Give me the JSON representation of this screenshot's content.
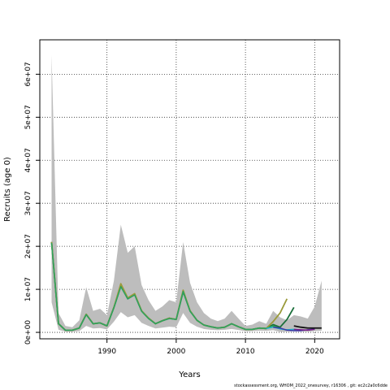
{
  "chart_data": {
    "type": "line",
    "xlabel": "Years",
    "ylabel": "Recruits (age 0)",
    "xlim": [
      1980.3,
      2023.6
    ],
    "ylim": [
      -1500000,
      68000000
    ],
    "x_ticks": [
      1990,
      2000,
      2010,
      2020
    ],
    "x_tick_labels": [
      "1990",
      "2000",
      "2010",
      "2020"
    ],
    "y_ticks": [
      0,
      10000000,
      20000000,
      30000000,
      40000000,
      50000000,
      60000000
    ],
    "y_tick_labels": [
      "0e+00",
      "1e+07",
      "2e+07",
      "3e+07",
      "4e+07",
      "5e+07",
      "6e+07"
    ],
    "grid": true,
    "years": [
      1982,
      1983,
      1984,
      1985,
      1986,
      1987,
      1988,
      1989,
      1990,
      1991,
      1992,
      1993,
      1994,
      1995,
      1996,
      1997,
      1998,
      1999,
      2000,
      2001,
      2002,
      2003,
      2004,
      2005,
      2006,
      2007,
      2008,
      2009,
      2010,
      2011,
      2012,
      2013,
      2014,
      2015,
      2016,
      2017,
      2018,
      2019,
      2020,
      2021
    ],
    "band_upper": [
      64500000,
      4500000,
      1500000,
      1200000,
      2800000,
      10500000,
      5000000,
      5500000,
      4000000,
      12000000,
      25000000,
      18500000,
      20000000,
      11000000,
      7500000,
      5000000,
      6000000,
      7500000,
      7000000,
      21000000,
      11500000,
      7000000,
      4500000,
      3200000,
      2600000,
      3200000,
      5000000,
      3200000,
      1500000,
      1800000,
      2600000,
      2000000,
      5000000,
      3500000,
      2800000,
      4000000,
      3700000,
      3200000,
      6000000,
      12000000
    ],
    "band_lower": [
      7000000,
      600000,
      150000,
      120000,
      300000,
      1500000,
      900000,
      1000000,
      700000,
      2500000,
      4700000,
      3500000,
      4000000,
      2200000,
      1500000,
      900000,
      1100000,
      1300000,
      1200000,
      4500000,
      2200000,
      1300000,
      800000,
      600000,
      500000,
      600000,
      800000,
      550000,
      250000,
      300000,
      400000,
      350000,
      500000,
      100000,
      150000,
      250000,
      200000,
      150000,
      300000,
      400000
    ],
    "estimate": [
      21000000,
      2000000,
      500000,
      500000,
      1000000,
      4200000,
      2000000,
      2200000,
      1500000,
      5800000,
      11000000,
      8000000,
      9000000,
      5000000,
      3300000,
      2000000,
      2700000,
      3300000,
      3000000,
      9800000,
      5000000,
      2800000,
      1700000,
      1300000,
      1000000,
      1200000,
      2000000,
      1300000,
      700000,
      700000,
      1000000,
      900000,
      1500000,
      1100000,
      700000,
      900000,
      850000,
      800000,
      1000000,
      1000000
    ],
    "series": [
      {
        "color": "#1a6e3a",
        "width": 1.8,
        "points": [
          [
            1982,
            21000000
          ],
          [
            1983,
            2000000
          ],
          [
            1984,
            500000
          ],
          [
            1985,
            500000
          ],
          [
            1986,
            1000000
          ],
          [
            1987,
            4200000
          ],
          [
            1988,
            2000000
          ],
          [
            1989,
            2200000
          ],
          [
            1990,
            1500000
          ],
          [
            1991,
            5800000
          ],
          [
            1992,
            10800000
          ],
          [
            1993,
            7800000
          ],
          [
            1994,
            8800000
          ],
          [
            1995,
            5000000
          ],
          [
            1996,
            3300000
          ],
          [
            1997,
            2000000
          ],
          [
            1998,
            2700000
          ],
          [
            1999,
            3300000
          ],
          [
            2000,
            3000000
          ],
          [
            2001,
            9500000
          ],
          [
            2002,
            5000000
          ],
          [
            2003,
            2800000
          ],
          [
            2004,
            1700000
          ],
          [
            2005,
            1300000
          ],
          [
            2006,
            1000000
          ],
          [
            2007,
            1200000
          ],
          [
            2008,
            2000000
          ],
          [
            2009,
            1300000
          ],
          [
            2010,
            700000
          ],
          [
            2011,
            700000
          ],
          [
            2012,
            1000000
          ],
          [
            2013,
            900000
          ],
          [
            2014,
            1800000
          ],
          [
            2015,
            1200000
          ],
          [
            2016,
            3000000
          ],
          [
            2017,
            5800000
          ]
        ]
      },
      {
        "color": "#9a9a3a",
        "width": 1.8,
        "points": [
          [
            1982,
            21000000
          ],
          [
            1983,
            2000000
          ],
          [
            1984,
            500000
          ],
          [
            1985,
            500000
          ],
          [
            1986,
            1000000
          ],
          [
            1987,
            4200000
          ],
          [
            1988,
            2000000
          ],
          [
            1989,
            2200000
          ],
          [
            1990,
            1500000
          ],
          [
            1991,
            5800000
          ],
          [
            1992,
            11300000
          ],
          [
            1993,
            8000000
          ],
          [
            1994,
            9000000
          ],
          [
            1995,
            5000000
          ],
          [
            1996,
            3300000
          ],
          [
            1997,
            2000000
          ],
          [
            1998,
            2700000
          ],
          [
            1999,
            3300000
          ],
          [
            2000,
            3000000
          ],
          [
            2001,
            9800000
          ],
          [
            2002,
            5000000
          ],
          [
            2003,
            2800000
          ],
          [
            2004,
            1700000
          ],
          [
            2005,
            1300000
          ],
          [
            2006,
            1000000
          ],
          [
            2007,
            1200000
          ],
          [
            2008,
            2000000
          ],
          [
            2009,
            1300000
          ],
          [
            2010,
            700000
          ],
          [
            2011,
            700000
          ],
          [
            2012,
            1000000
          ],
          [
            2013,
            900000
          ],
          [
            2014,
            2500000
          ],
          [
            2015,
            4500000
          ],
          [
            2016,
            7800000
          ]
        ]
      },
      {
        "color": "#2ca25f",
        "width": 1.5,
        "points": [
          [
            1982,
            20800000
          ],
          [
            1983,
            2000000
          ],
          [
            1984,
            500000
          ],
          [
            1985,
            500000
          ],
          [
            1986,
            1000000
          ],
          [
            1987,
            4100000
          ],
          [
            1988,
            2000000
          ],
          [
            1989,
            2200000
          ],
          [
            1990,
            1500000
          ],
          [
            1991,
            5700000
          ],
          [
            1992,
            10600000
          ],
          [
            1993,
            7800000
          ],
          [
            1994,
            8700000
          ],
          [
            1995,
            4900000
          ],
          [
            1996,
            3200000
          ],
          [
            1997,
            2000000
          ],
          [
            1998,
            2700000
          ],
          [
            1999,
            3200000
          ],
          [
            2000,
            3000000
          ],
          [
            2001,
            9500000
          ],
          [
            2002,
            4900000
          ],
          [
            2003,
            2800000
          ],
          [
            2004,
            1700000
          ],
          [
            2005,
            1300000
          ],
          [
            2006,
            1000000
          ],
          [
            2007,
            1200000
          ],
          [
            2008,
            2000000
          ],
          [
            2009,
            1300000
          ],
          [
            2010,
            700000
          ],
          [
            2011,
            700000
          ],
          [
            2012,
            1000000
          ],
          [
            2013,
            900000
          ],
          [
            2014,
            1500000
          ],
          [
            2015,
            900000
          ]
        ]
      },
      {
        "color": "#20b2c8",
        "width": 1.5,
        "points": [
          [
            2013,
            900000
          ],
          [
            2014,
            1200000
          ],
          [
            2015,
            800000
          ],
          [
            2016,
            600000
          ],
          [
            2017,
            700000
          ],
          [
            2018,
            500000
          ]
        ]
      },
      {
        "color": "#3a3aa8",
        "width": 1.5,
        "points": [
          [
            2014,
            1200000
          ],
          [
            2015,
            1000000
          ],
          [
            2016,
            500000
          ],
          [
            2017,
            400000
          ],
          [
            2018,
            400000
          ],
          [
            2019,
            600000
          ],
          [
            2020,
            800000
          ]
        ]
      },
      {
        "color": "#7a1f8a",
        "width": 1.5,
        "points": [
          [
            2017,
            700000
          ],
          [
            2018,
            600000
          ],
          [
            2019,
            500000
          ],
          [
            2020,
            700000
          ]
        ]
      },
      {
        "color": "#111111",
        "width": 1.8,
        "points": [
          [
            2017,
            1500000
          ],
          [
            2018,
            1200000
          ],
          [
            2019,
            1000000
          ],
          [
            2020,
            1000000
          ],
          [
            2021,
            1000000
          ]
        ]
      }
    ]
  },
  "credit": "stockassessment.org, WHOM_2022_onesurvey, r16306 , git: ec2c2a0c6dde"
}
